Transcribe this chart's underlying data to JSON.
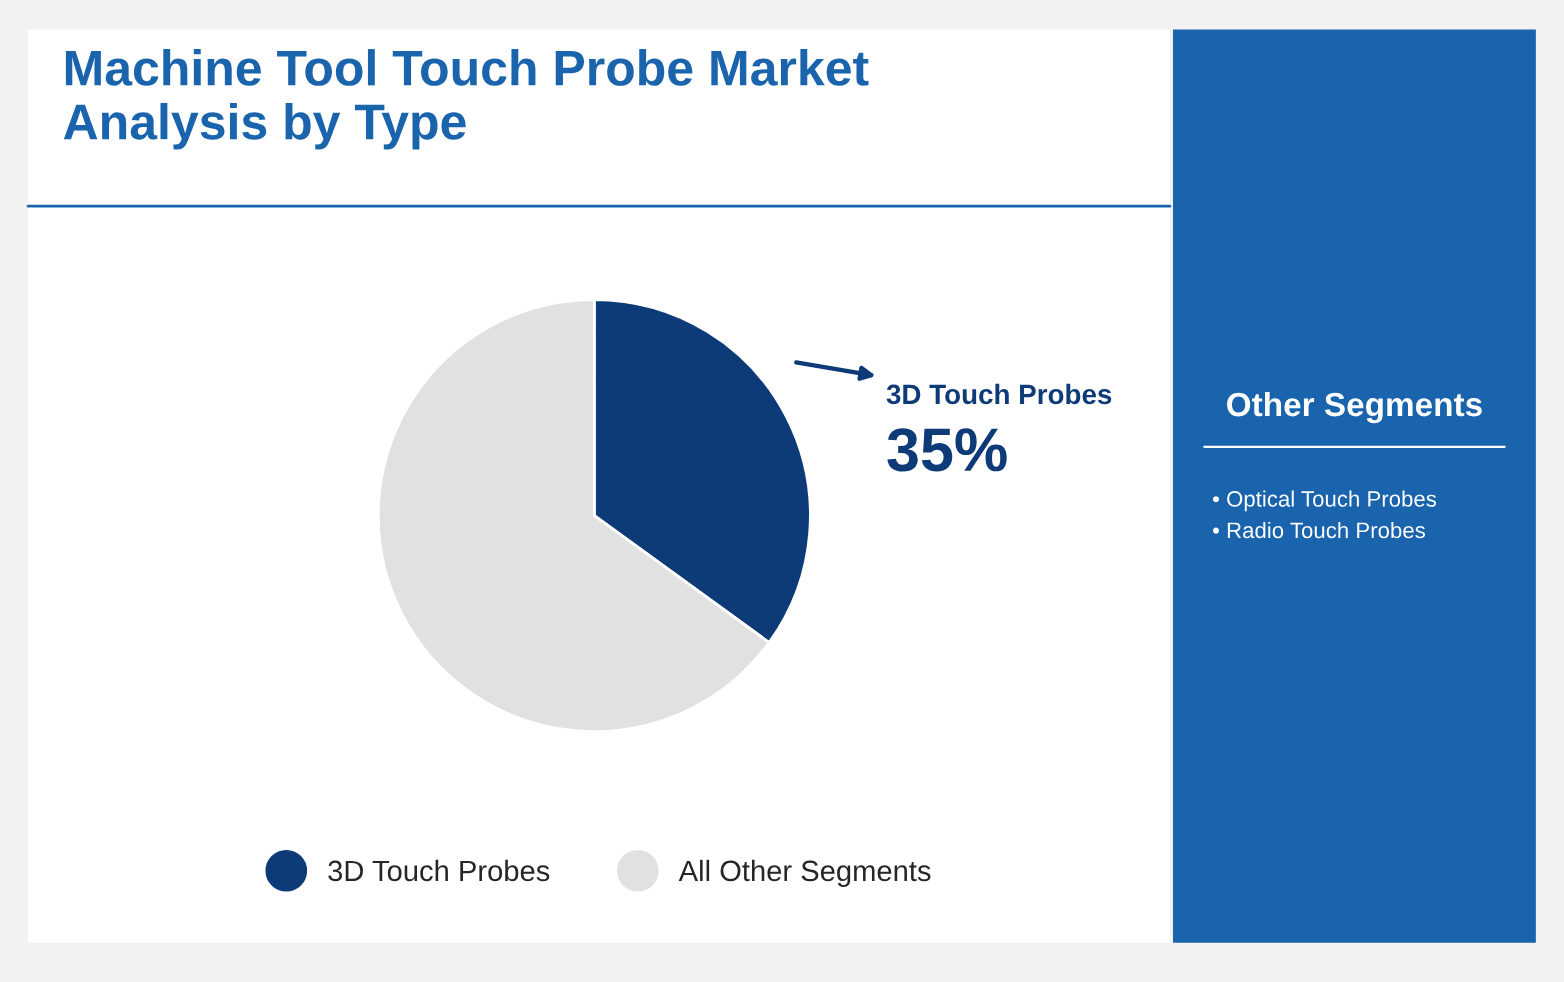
{
  "chart_data": {
    "type": "pie",
    "title": "Machine Tool Touch Probe Market\nAnalysis by Type",
    "categories": [
      "3D Touch Probes",
      "All Other Segments"
    ],
    "values": [
      35,
      65
    ],
    "colors": [
      "#0d3b78",
      "#e1e1e1"
    ],
    "value_labels": [
      "35%",
      null
    ],
    "legend": "bottom",
    "annotations": [
      "Other Segments",
      "• Optical Touch Probes",
      "• Radio Touch Probes"
    ]
  }
}
